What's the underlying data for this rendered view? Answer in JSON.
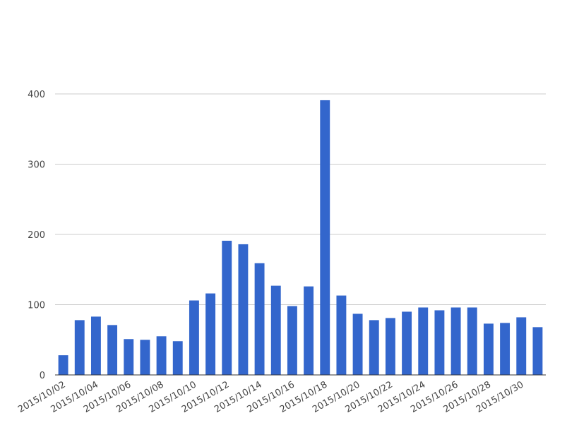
{
  "chart_data": {
    "type": "bar",
    "categories": [
      "2015/10/02",
      null,
      "2015/10/04",
      null,
      "2015/10/06",
      null,
      "2015/10/08",
      null,
      "2015/10/10",
      null,
      "2015/10/12",
      null,
      "2015/10/14",
      null,
      "2015/10/16",
      null,
      "2015/10/18",
      null,
      "2015/10/20",
      null,
      "2015/10/22",
      null,
      "2015/10/24",
      null,
      "2015/10/26",
      null,
      "2015/10/28",
      null,
      "2015/10/30",
      null
    ],
    "values": [
      28,
      78,
      83,
      71,
      51,
      50,
      55,
      48,
      106,
      116,
      191,
      186,
      159,
      127,
      98,
      126,
      391,
      113,
      87,
      78,
      81,
      90,
      96,
      92,
      96,
      96,
      73,
      74,
      82,
      68
    ],
    "color": "#3366cc",
    "ylim": [
      0,
      400
    ],
    "yticks": [
      0,
      100,
      200,
      300,
      400
    ],
    "grid": true
  }
}
